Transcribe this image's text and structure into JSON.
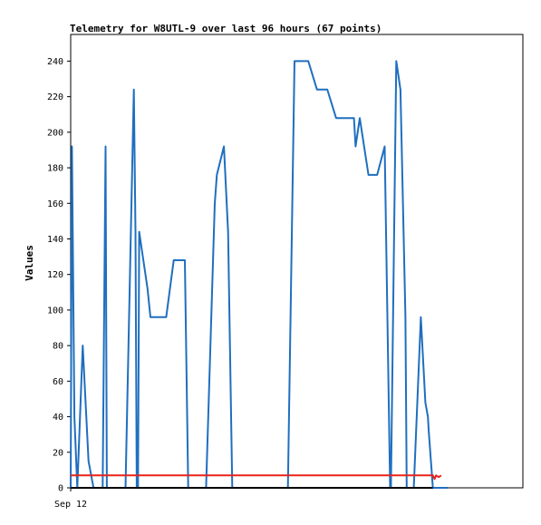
{
  "chart_data": {
    "type": "line",
    "title": "Telemetry for W8UTL-9 over last 96 hours (67 points)",
    "ylabel": "Values",
    "xlabel": "",
    "x_tick_labels": [
      "Sep 12"
    ],
    "ylim": [
      0,
      255
    ],
    "y_ticks": [
      0,
      20,
      40,
      60,
      80,
      100,
      120,
      140,
      160,
      180,
      200,
      220,
      240
    ],
    "grid": false,
    "colors": {
      "series_1": "#1f6fbf",
      "series_2": "#e8231a",
      "series_3": "#000000"
    },
    "series": [
      {
        "key": "series_1",
        "x": [
          0,
          0.3,
          0.9,
          1.6,
          2.9,
          4.3,
          5.5,
          6.6,
          7.7,
          8.4,
          8.7,
          9.0,
          9.3,
          9.6,
          13.2,
          15.2,
          15.6,
          15.9,
          16.2,
          16.5,
          18.5,
          19.2,
          20.5,
          22.5,
          23.0,
          24.8,
          27.5,
          28.3,
          30.5,
          32.6,
          34.7,
          35.2,
          36.9,
          37.9,
          38.9,
          39.4,
          41.5,
          52.3,
          53.9,
          57.2,
          59.3,
          61.8,
          63.9,
          66.0,
          68.2,
          68.6,
          69.6,
          71.7,
          73.8,
          75.6,
          76.9,
          77.1,
          78.4,
          79.4,
          80.6,
          80.9,
          81.5,
          82.4,
          82.6,
          84.3,
          85.4,
          86.0,
          86.2,
          87.2,
          88.2,
          89.4,
          90.8
        ],
        "y": [
          0,
          192,
          40,
          0,
          80,
          15,
          0,
          0,
          0,
          192,
          0,
          0,
          0,
          0,
          0,
          224,
          144,
          0,
          0,
          144,
          112,
          96,
          96,
          96,
          96,
          128,
          128,
          0,
          0,
          0,
          160,
          176,
          192,
          144,
          0,
          0,
          0,
          0,
          240,
          240,
          224,
          224,
          208,
          208,
          208,
          192,
          208,
          176,
          176,
          192,
          0,
          0,
          240,
          224,
          96,
          0,
          0,
          0,
          0,
          96,
          48,
          40,
          32,
          0,
          0,
          0,
          0
        ]
      },
      {
        "key": "series_2",
        "x": [
          0,
          87.2,
          87.6,
          88.0,
          88.6,
          89.2
        ],
        "y": [
          7,
          7,
          5,
          7,
          6,
          7
        ]
      },
      {
        "key": "series_3",
        "x": [
          0,
          87.2
        ],
        "y": [
          0,
          0
        ]
      }
    ],
    "xlim": [
      0,
      96
    ]
  }
}
